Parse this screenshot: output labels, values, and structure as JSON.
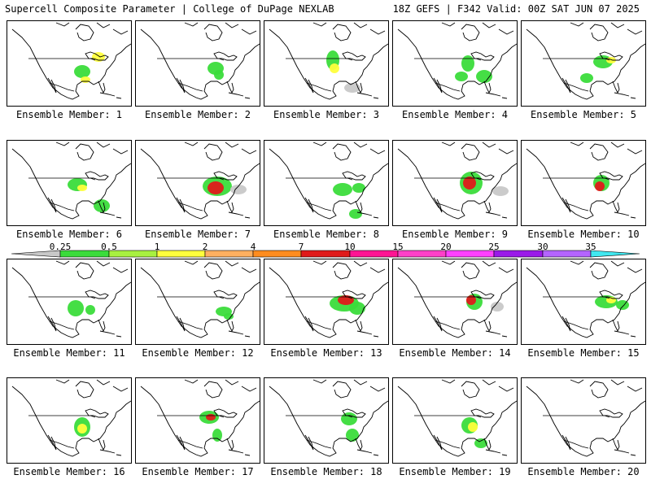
{
  "header": {
    "left": "Supercell Composite Parameter | College of DuPage NEXLAB",
    "right": "18Z GEFS | F342 Valid: 00Z SAT JUN 07 2025"
  },
  "legend": {
    "ticks": [
      "0.25",
      "0.5",
      "1",
      "2",
      "4",
      "7",
      "10",
      "15",
      "20",
      "25",
      "30",
      "35"
    ],
    "colors": [
      "#c8c8c8",
      "#3bdc3b",
      "#a8f040",
      "#ffff3c",
      "#ffb060",
      "#ff8c1e",
      "#e01a1a",
      "#ff1493",
      "#ff40c8",
      "#ff40ff",
      "#9a1ae8",
      "#b464ff",
      "#40e8f0"
    ]
  },
  "panels": [
    {
      "label": "Ensemble Member: 1"
    },
    {
      "label": "Ensemble Member: 2"
    },
    {
      "label": "Ensemble Member: 3"
    },
    {
      "label": "Ensemble Member: 4"
    },
    {
      "label": "Ensemble Member: 5"
    },
    {
      "label": "Ensemble Member: 6"
    },
    {
      "label": "Ensemble Member: 7"
    },
    {
      "label": "Ensemble Member: 8"
    },
    {
      "label": "Ensemble Member: 9"
    },
    {
      "label": "Ensemble Member: 10"
    },
    {
      "label": "Ensemble Member: 11"
    },
    {
      "label": "Ensemble Member: 12"
    },
    {
      "label": "Ensemble Member: 13"
    },
    {
      "label": "Ensemble Member: 14"
    },
    {
      "label": "Ensemble Member: 15"
    },
    {
      "label": "Ensemble Member: 16"
    },
    {
      "label": "Ensemble Member: 17"
    },
    {
      "label": "Ensemble Member: 18"
    },
    {
      "label": "Ensemble Member: 19"
    },
    {
      "label": "Ensemble Member: 20"
    }
  ]
}
